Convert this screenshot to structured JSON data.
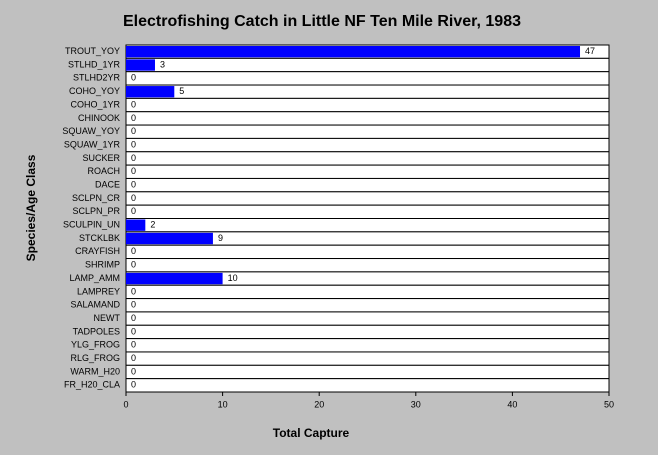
{
  "chart_data": {
    "type": "bar",
    "orientation": "horizontal",
    "title": "Electrofishing Catch in Little NF Ten Mile River, 1983",
    "x_label": "Total Capture",
    "y_label": "Species/Age Class",
    "categories": [
      "TROUT_YOY",
      "STLHD_1YR",
      "STLHD2YR",
      "COHO_YOY",
      "COHO_1YR",
      "CHINOOK",
      "SQUAW_YOY",
      "SQUAW_1YR",
      "SUCKER",
      "ROACH",
      "DACE",
      "SCLPN_CR",
      "SCLPN_PR",
      "SCULPIN_UN",
      "STCKLBK",
      "CRAYFISH",
      "SHRIMP",
      "LAMP_AMM",
      "LAMPREY",
      "SALAMAND",
      "NEWT",
      "TADPOLES",
      "YLG_FROG",
      "RLG_FROG",
      "WARM_H20",
      "FR_H20_CLA"
    ],
    "values": [
      47,
      3,
      0,
      5,
      0,
      0,
      0,
      0,
      0,
      0,
      0,
      0,
      0,
      2,
      9,
      0,
      0,
      10,
      0,
      0,
      0,
      0,
      0,
      0,
      0,
      0
    ],
    "color": "#0000ff",
    "xlim": [
      0,
      50
    ],
    "xticks": [
      0,
      10,
      20,
      30,
      40,
      50
    ]
  }
}
